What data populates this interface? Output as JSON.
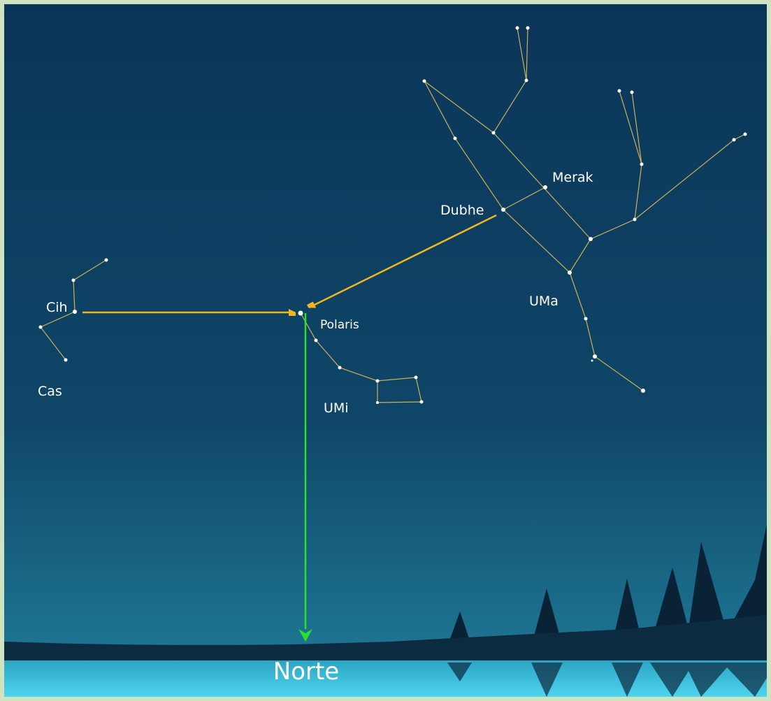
{
  "stars": {
    "merak": "Merak",
    "dubhe": "Dubhe",
    "cih": "Cih",
    "polaris": "Polaris"
  },
  "constellations": {
    "uma": "UMa",
    "cas": "Cas",
    "umi": "UMi"
  },
  "direction": "Norte"
}
